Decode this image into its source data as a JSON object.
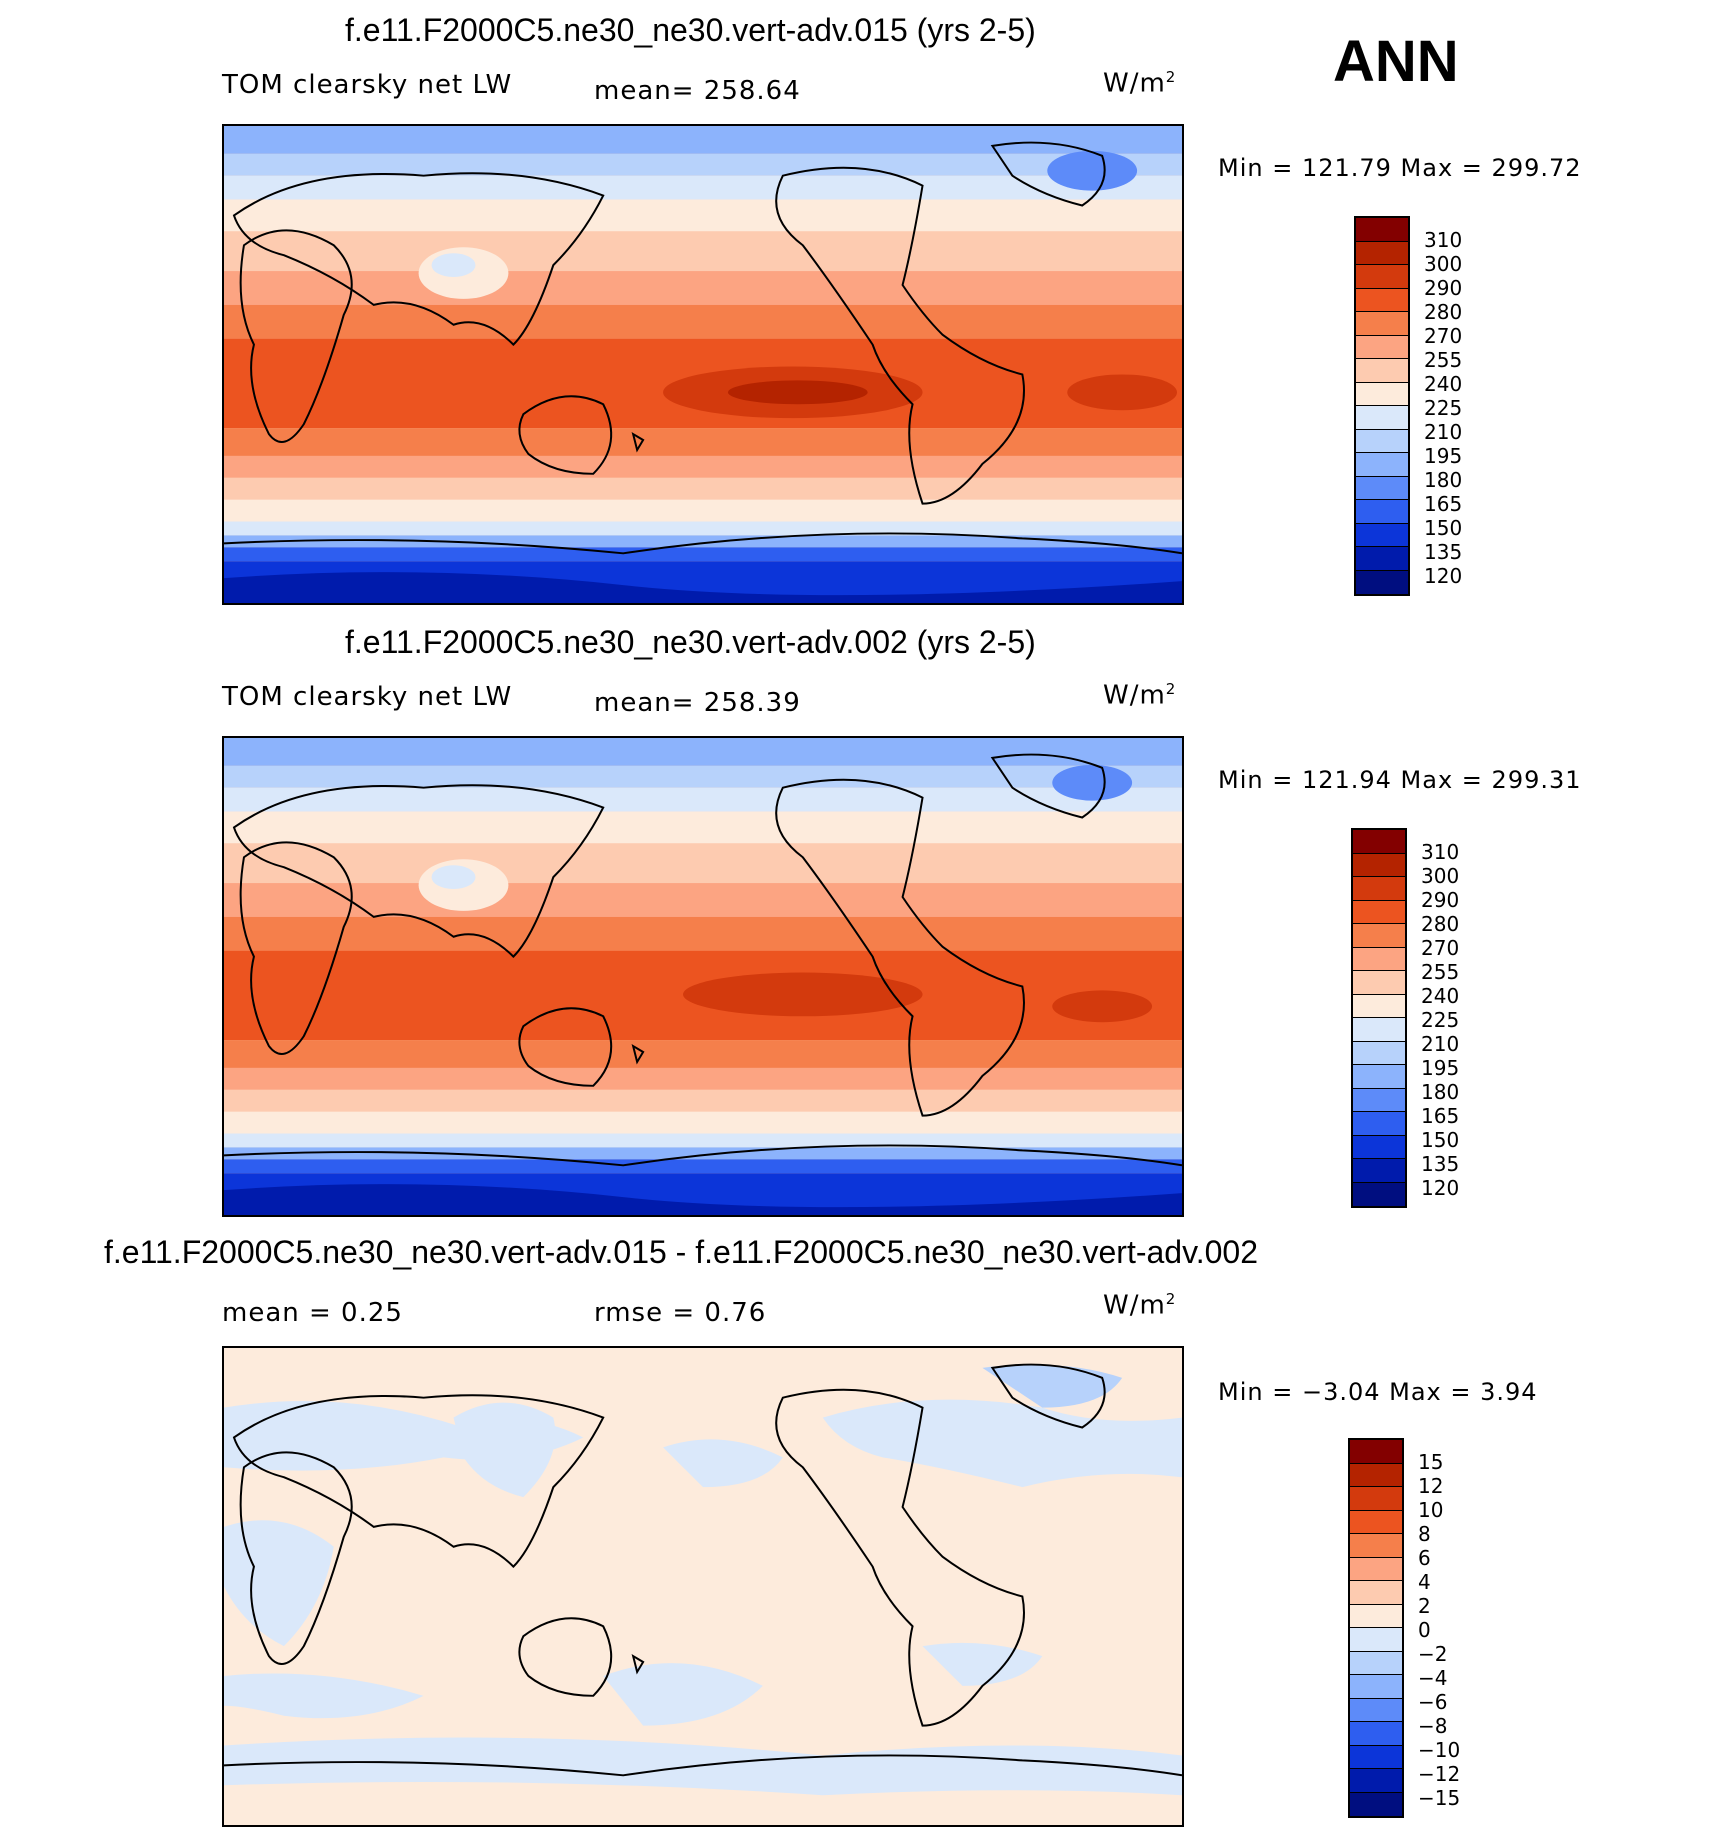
{
  "season": "ANN",
  "panels": [
    {
      "title": "f.e11.F2000C5.ne30_ne30.vert-adv.015 (yrs 2-5)",
      "left_label": "TOM clearsky net LW",
      "mid_label": "mean= 258.64",
      "units": "W/m",
      "units_sup": "2",
      "minmax": "Min = 121.79 Max = 299.72",
      "colorbar_ticks": [
        "310",
        "300",
        "290",
        "280",
        "270",
        "255",
        "240",
        "225",
        "210",
        "195",
        "180",
        "165",
        "150",
        "135",
        "120"
      ]
    },
    {
      "title": "f.e11.F2000C5.ne30_ne30.vert-adv.002 (yrs 2-5)",
      "left_label": "TOM clearsky net LW",
      "mid_label": "mean= 258.39",
      "units": "W/m",
      "units_sup": "2",
      "minmax": "Min = 121.94 Max = 299.31",
      "colorbar_ticks": [
        "310",
        "300",
        "290",
        "280",
        "270",
        "255",
        "240",
        "225",
        "210",
        "195",
        "180",
        "165",
        "150",
        "135",
        "120"
      ]
    },
    {
      "title": "f.e11.F2000C5.ne30_ne30.vert-adv.015 - f.e11.F2000C5.ne30_ne30.vert-adv.002",
      "left_label": "mean =    0.25",
      "mid_label": "rmse =    0.76",
      "units": "W/m",
      "units_sup": "2",
      "minmax": "Min =  −3.04 Max =    3.94",
      "colorbar_ticks": [
        "15",
        "12",
        "10",
        "8",
        "6",
        "4",
        "2",
        "0",
        "−2",
        "−4",
        "−6",
        "−8",
        "−10",
        "−12",
        "−15"
      ]
    }
  ],
  "colors": {
    "abs_scale": [
      "#830000",
      "#b42300",
      "#d33a0d",
      "#ec5420",
      "#f57f4b",
      "#fca482",
      "#fdcbb0",
      "#fdebdc",
      "#dae8fa",
      "#b7d2fb",
      "#8cb3fc",
      "#5d8bf9",
      "#2e5ef0",
      "#0c35d9",
      "#001bac",
      "#000e80"
    ],
    "diff_scale": [
      "#830000",
      "#b42300",
      "#d33a0d",
      "#ec5420",
      "#f57f4b",
      "#fca482",
      "#fdcbb0",
      "#fdebdc",
      "#dae8fa",
      "#b7d2fb",
      "#8cb3fc",
      "#5d8bf9",
      "#2e5ef0",
      "#0c35d9",
      "#001bac",
      "#000e80"
    ]
  }
}
